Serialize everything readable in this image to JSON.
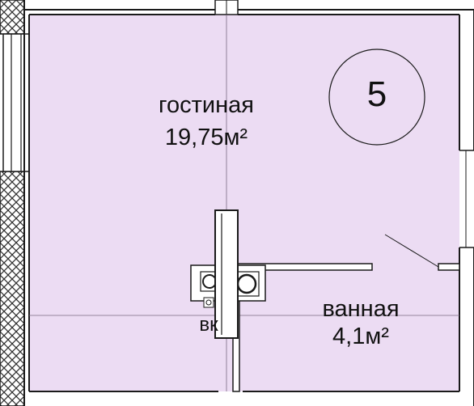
{
  "colors": {
    "room_fill": "#ecdcf3",
    "wall": "#1a1a1a",
    "hatch": "#2a2a2a",
    "inner_line": "#a080a8"
  },
  "rooms": [
    {
      "name": "гостиная",
      "area": "19,75м²"
    },
    {
      "name": "ванная",
      "area": "4,1м²"
    }
  ],
  "unit_number": "5",
  "shaft_label": "ВК",
  "icons": [
    "hatch-pattern",
    "ventilation-block",
    "door-swing"
  ]
}
